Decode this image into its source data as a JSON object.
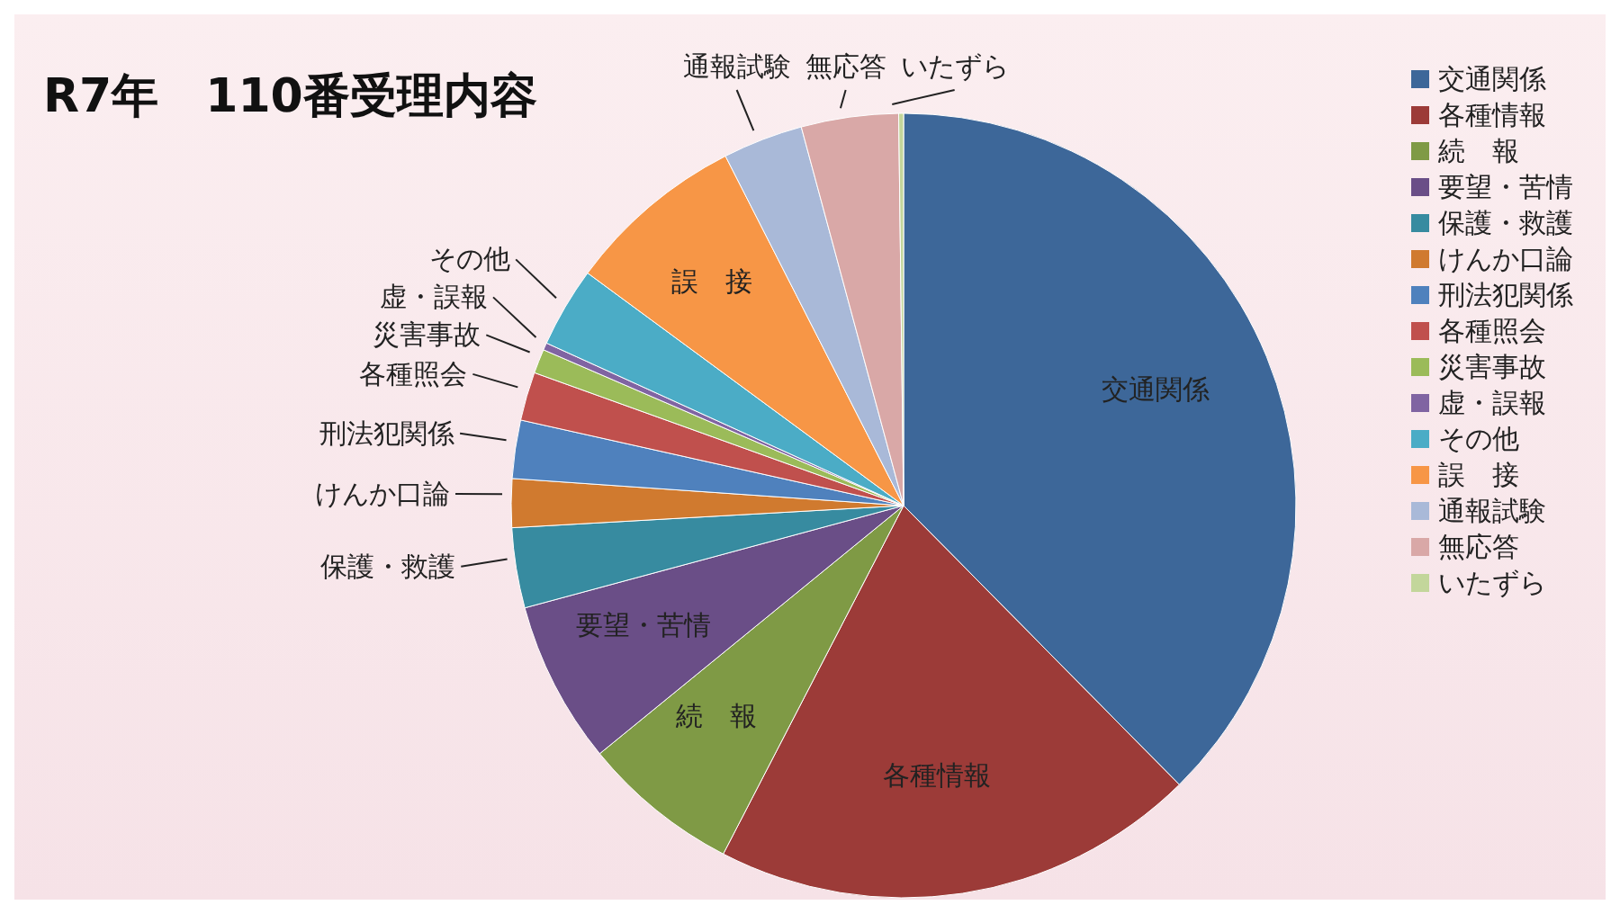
{
  "chart_data": {
    "type": "pie",
    "title": "R7年　110番受理内容",
    "categories": [
      "交通関係",
      "各種情報",
      "続　報",
      "要望・苦情",
      "保護・救護",
      "けんか口論",
      "刑法犯関係",
      "各種照会",
      "災害事故",
      "虚・誤報",
      "その他",
      "誤　接",
      "通報試験",
      "無応答",
      "いたずら"
    ],
    "values": [
      37.6,
      20,
      6.5,
      6.7,
      3.3,
      2,
      2.4,
      2,
      1,
      0.3,
      3.3,
      7.4,
      3.3,
      4,
      0.2
    ],
    "colors": [
      "#3d6799",
      "#9c3b38",
      "#7f9a45",
      "#6a4e87",
      "#378ba0",
      "#d07a2f",
      "#4f81bd",
      "#c0504d",
      "#9bbb59",
      "#8064a2",
      "#4bacc6",
      "#f79646",
      "#a9b9d8",
      "#d9a8a7",
      "#c3d69b"
    ],
    "legend": "right"
  }
}
